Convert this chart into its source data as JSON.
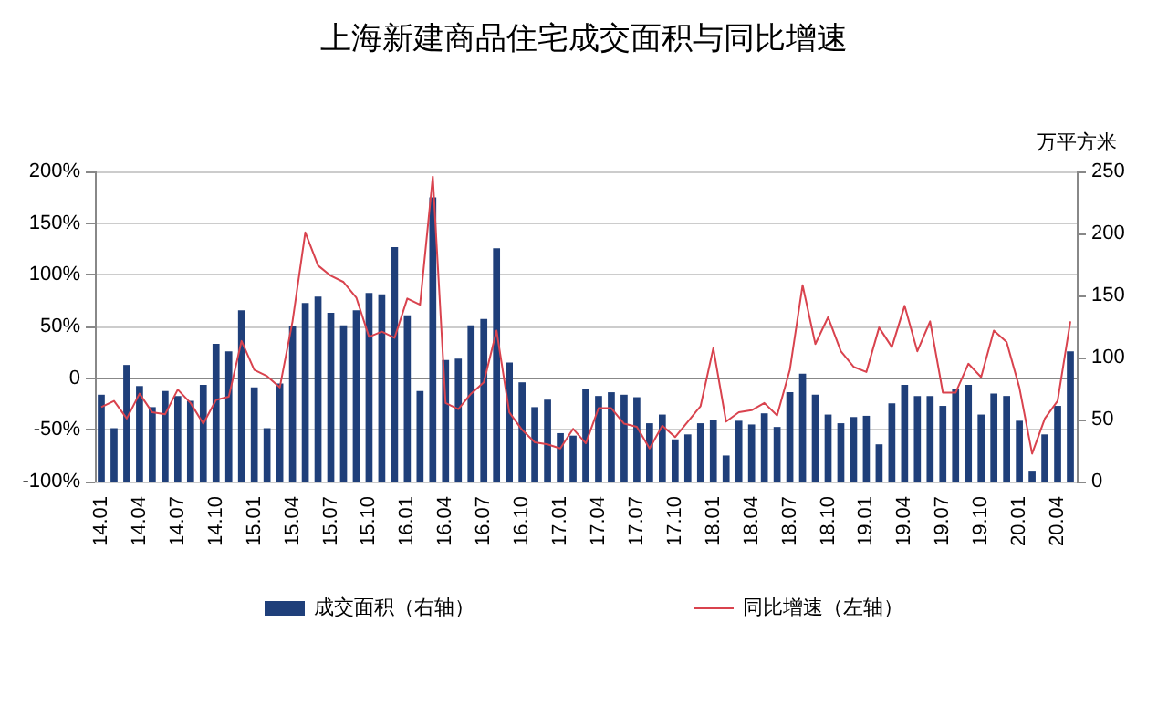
{
  "chart_data": {
    "type": "bar",
    "title": "上海新建商品住宅成交面积与同比增速",
    "categories": [
      "14.01",
      null,
      null,
      "14.04",
      null,
      null,
      "14.07",
      null,
      null,
      "14.10",
      null,
      null,
      "15.01",
      null,
      null,
      "15.04",
      null,
      null,
      "15.07",
      null,
      null,
      "15.10",
      null,
      null,
      "16.01",
      null,
      null,
      "16.04",
      null,
      null,
      "16.07",
      null,
      null,
      "16.10",
      null,
      null,
      "17.01",
      null,
      null,
      "17.04",
      null,
      null,
      "17.07",
      null,
      null,
      "17.10",
      null,
      null,
      "18.01",
      null,
      null,
      "18.04",
      null,
      null,
      "18.07",
      null,
      null,
      "18.10",
      null,
      null,
      "19.01",
      null,
      null,
      "19.04",
      null,
      null,
      "19.07",
      null,
      null,
      "19.10",
      null,
      null,
      "20.01",
      null,
      null,
      "20.04",
      null
    ],
    "series": [
      {
        "name": "成交面积（右轴）",
        "axis": "y2",
        "color": "#1f3f7a",
        "values": [
          70,
          43,
          94,
          77,
          60,
          73,
          69,
          65,
          78,
          111,
          105,
          138,
          76,
          43,
          79,
          125,
          144,
          149,
          136,
          126,
          138,
          152,
          151,
          189,
          134,
          73,
          229,
          98,
          99,
          126,
          131,
          188,
          96,
          80,
          60,
          66,
          39,
          37,
          75,
          69,
          72,
          70,
          68,
          47,
          54,
          34,
          38,
          47,
          50,
          21,
          49,
          46,
          55,
          44,
          72,
          87,
          70,
          54,
          47,
          52,
          53,
          30,
          63,
          78,
          69,
          69,
          61,
          75,
          78,
          54,
          71,
          69,
          49,
          8,
          38,
          61,
          105
        ]
      },
      {
        "name": "同比增速（左轴）",
        "type": "line",
        "color": "#d9434e",
        "values": [
          -28,
          -22,
          -39,
          -15,
          -33,
          -35,
          -11,
          -24,
          -44,
          -21,
          -18,
          36,
          8,
          2,
          -9,
          55,
          141,
          109,
          99,
          93,
          78,
          40,
          45,
          39,
          77,
          71,
          195,
          -24,
          -30,
          -15,
          -4,
          46,
          -33,
          -50,
          -62,
          -64,
          -68,
          -49,
          -63,
          -29,
          -29,
          -44,
          -47,
          -68,
          -46,
          -57,
          -42,
          -27,
          29,
          -42,
          -33,
          -31,
          -24,
          -36,
          8,
          90,
          33,
          59,
          26,
          11,
          6,
          49,
          30,
          70,
          26,
          55,
          -14,
          -14,
          14,
          1,
          46,
          35,
          -9,
          -73,
          -39,
          -22,
          55
        ]
      }
    ],
    "ylim": [
      -100,
      200
    ],
    "yticks": [
      {
        "value": -100,
        "label": "-100%"
      },
      {
        "value": -50,
        "label": "-50%"
      },
      {
        "value": 0,
        "label": "0"
      },
      {
        "value": 50,
        "label": "50%"
      },
      {
        "value": 100,
        "label": "100%"
      },
      {
        "value": 150,
        "label": "150%"
      },
      {
        "value": 200,
        "label": "200%"
      }
    ],
    "y2label": "万平方米",
    "y2lim": [
      0,
      250
    ],
    "y2ticks": [
      0,
      50,
      100,
      150,
      200,
      250
    ],
    "grid": "y",
    "legend": "bottom",
    "marker": "none"
  }
}
